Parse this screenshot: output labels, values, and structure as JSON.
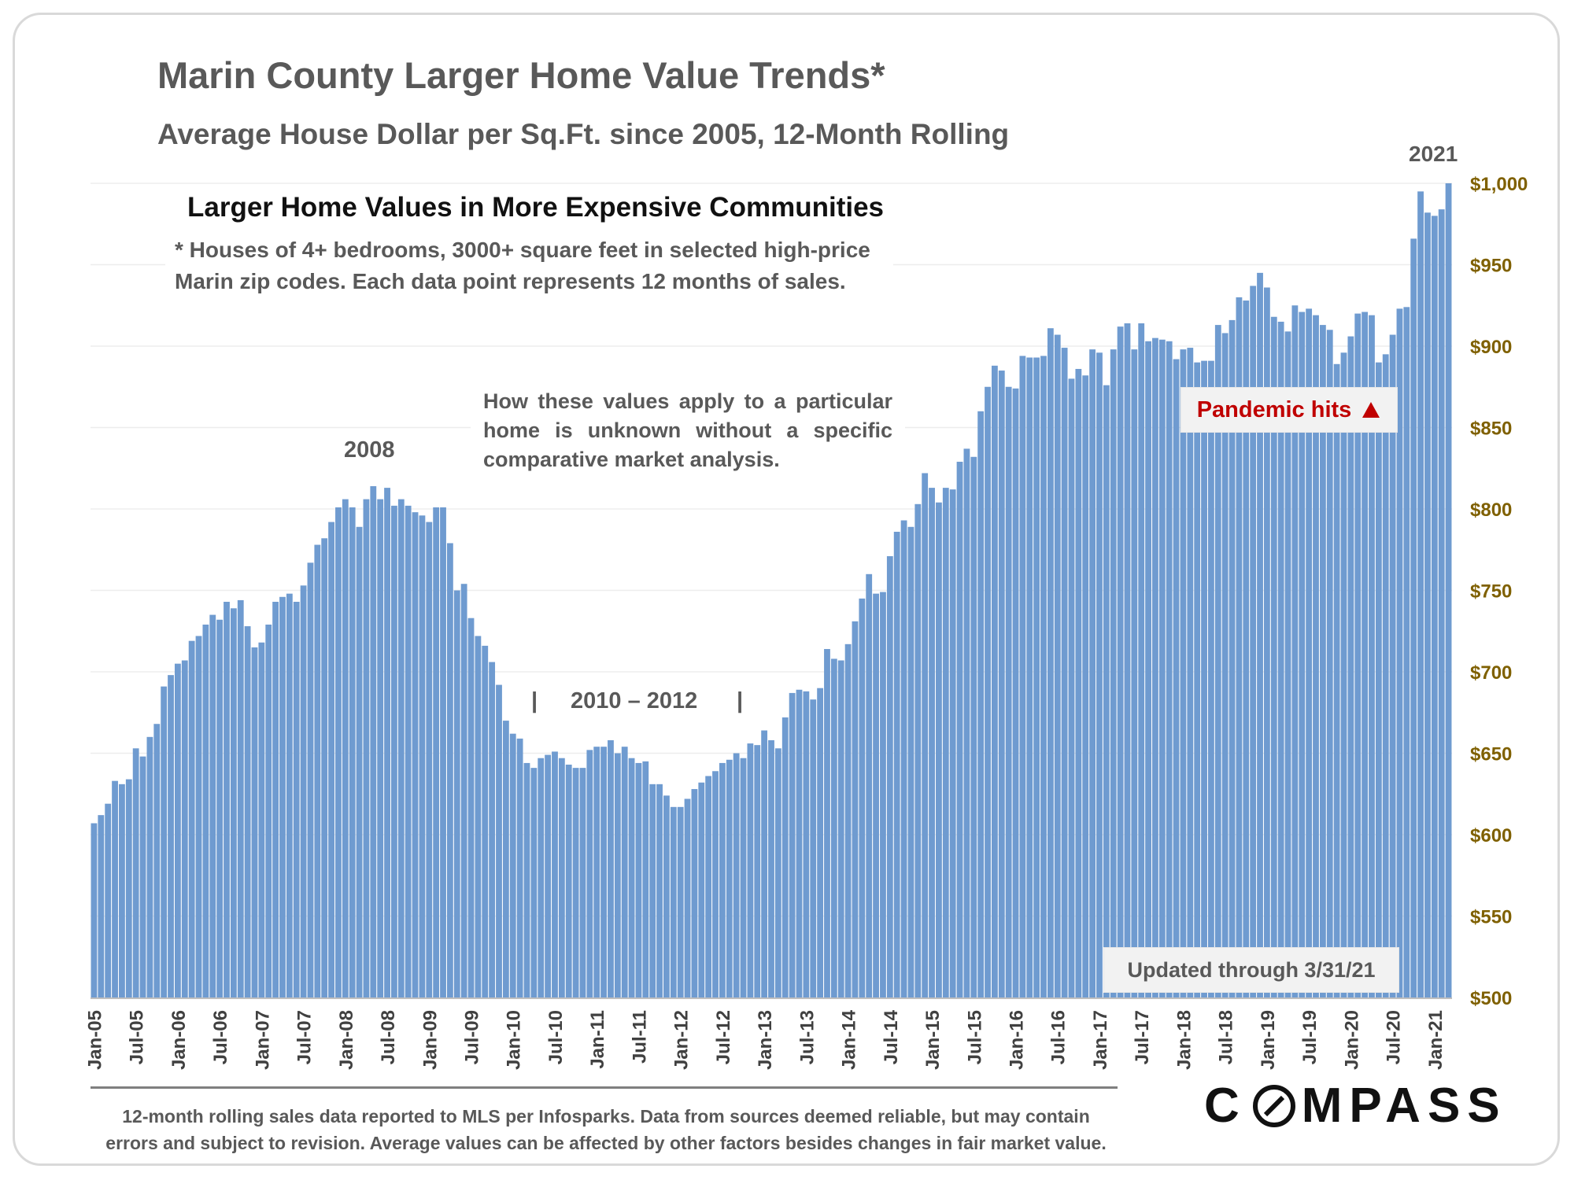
{
  "page": {
    "title": "Marin County Larger Home Value Trends*",
    "subtitle": "Average House Dollar per Sq.Ft. since 2005, 12-Month Rolling",
    "year_label": "2021",
    "box_heading": "Larger Home Values in More Expensive Communities",
    "box_note_line1": "* Houses of 4+ bedrooms, 3000+ square feet in selected high-price",
    "box_note_line2": "Marin zip codes. Each data point represents 12 months of sales.",
    "analysis_note": "How these values apply to a particular home is unknown without a specific comparative market analysis.",
    "label_2008": "2008",
    "label_2010_2012": "2010 – 2012",
    "bracket_mark": "|",
    "pandemic_label": "Pandemic hits",
    "pandemic_icon": "up-triangle-icon",
    "updated_label": "Updated through 3/31/21",
    "footnote_line1": "12-month rolling sales data reported to MLS per Infosparks. Data from sources deemed reliable, but may contain",
    "footnote_line2": "errors and subject to revision. Average values can be affected by other factors besides changes in fair market value.",
    "logo_prefix": "C",
    "logo_suffix": "MPASS",
    "colors": {
      "bar": "#6f9bd0",
      "axis_text": "#7f6000",
      "pandemic": "#c00000",
      "text": "#595959"
    }
  },
  "chart_data": {
    "type": "bar",
    "ylim": [
      500,
      1000
    ],
    "yticks": [
      500,
      550,
      600,
      650,
      700,
      750,
      800,
      850,
      900,
      950,
      1000
    ],
    "ytick_labels": [
      "$500",
      "$550",
      "$600",
      "$650",
      "$700",
      "$750",
      "$800",
      "$850",
      "$900",
      "$950",
      "$1,000"
    ],
    "grid": true,
    "x_start": "Jan-05",
    "x_end": "Mar-21",
    "xtick_labels": [
      "Jan-05",
      "Jul-05",
      "Jan-06",
      "Jul-06",
      "Jan-07",
      "Jul-07",
      "Jan-08",
      "Jul-08",
      "Jan-09",
      "Jul-09",
      "Jan-10",
      "Jul-10",
      "Jan-11",
      "Jul-11",
      "Jan-12",
      "Jul-12",
      "Jan-13",
      "Jul-13",
      "Jan-14",
      "Jul-14",
      "Jan-15",
      "Jul-15",
      "Jan-16",
      "Jul-16",
      "Jan-17",
      "Jul-17",
      "Jan-18",
      "Jul-18",
      "Jan-19",
      "Jul-19",
      "Jan-20",
      "Jul-20",
      "Jan-21"
    ],
    "values": [
      607,
      612,
      619,
      633,
      631,
      634,
      653,
      648,
      660,
      668,
      691,
      698,
      705,
      707,
      719,
      722,
      729,
      735,
      732,
      743,
      739,
      744,
      728,
      715,
      718,
      729,
      743,
      746,
      748,
      743,
      753,
      767,
      778,
      782,
      792,
      801,
      806,
      801,
      789,
      806,
      814,
      806,
      813,
      802,
      806,
      802,
      798,
      796,
      792,
      801,
      801,
      779,
      750,
      754,
      733,
      722,
      716,
      706,
      692,
      670,
      662,
      659,
      644,
      641,
      647,
      649,
      651,
      647,
      643,
      641,
      641,
      652,
      654,
      654,
      658,
      650,
      654,
      647,
      644,
      645,
      631,
      631,
      624,
      617,
      617,
      622,
      628,
      632,
      636,
      639,
      644,
      646,
      650,
      647,
      656,
      655,
      664,
      658,
      653,
      672,
      687,
      689,
      688,
      683,
      690,
      714,
      708,
      707,
      717,
      731,
      745,
      760,
      748,
      749,
      771,
      786,
      793,
      789,
      803,
      822,
      813,
      804,
      813,
      812,
      829,
      837,
      832,
      860,
      875,
      888,
      885,
      875,
      874,
      894,
      893,
      893,
      894,
      911,
      907,
      899,
      880,
      886,
      882,
      898,
      896,
      876,
      898,
      912,
      914,
      898,
      914,
      903,
      905,
      904,
      903,
      892,
      898,
      899,
      890,
      891,
      891,
      913,
      908,
      916,
      930,
      928,
      937,
      945,
      936,
      918,
      915,
      909,
      925,
      921,
      923,
      919,
      913,
      910,
      889,
      896,
      906,
      920,
      921,
      919,
      890,
      895,
      907,
      923,
      924,
      966,
      995,
      982,
      980,
      984,
      1000
    ]
  }
}
